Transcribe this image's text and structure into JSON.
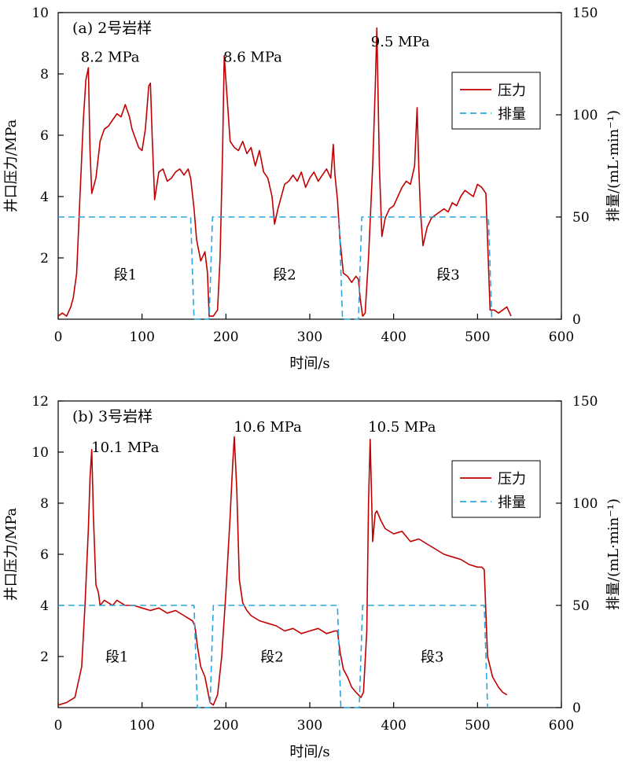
{
  "chart_data": [
    {
      "type": "line",
      "title": "(a) 2号岩样",
      "xlabel": "时间/s",
      "ylabel_left": "井口压力/MPa",
      "ylabel_right": "排量/(mL·min⁻¹)",
      "xlim": [
        0,
        600
      ],
      "ylim_left": [
        0,
        10
      ],
      "ylim_right": [
        0,
        150
      ],
      "xticks": [
        0,
        100,
        200,
        300,
        400,
        500,
        600
      ],
      "yticks_left": [
        2,
        4,
        6,
        8,
        10
      ],
      "yticks_right": [
        0,
        50,
        100,
        150
      ],
      "legend": {
        "position": "top-right",
        "entries": [
          "压力",
          "排量"
        ]
      },
      "grid": false,
      "annotations": [
        {
          "text": "8.2 MPa",
          "x": 62,
          "y": 8.4
        },
        {
          "text": "8.6 MPa",
          "x": 232,
          "y": 8.4
        },
        {
          "text": "9.5 MPa",
          "x": 408,
          "y": 8.9
        },
        {
          "text": "段1",
          "x": 80,
          "y": 1.3
        },
        {
          "text": "段2",
          "x": 270,
          "y": 1.3
        },
        {
          "text": "段3",
          "x": 465,
          "y": 1.3
        }
      ],
      "series": [
        {
          "name": "压力",
          "axis": "left",
          "color": "#c00000",
          "style": "solid",
          "x": [
            0,
            5,
            10,
            15,
            18,
            22,
            26,
            30,
            33,
            36,
            38,
            40,
            45,
            50,
            55,
            60,
            65,
            70,
            75,
            80,
            85,
            88,
            92,
            96,
            100,
            104,
            108,
            110,
            112,
            115,
            120,
            125,
            130,
            135,
            140,
            145,
            150,
            155,
            158,
            162,
            165,
            170,
            175,
            178,
            180,
            185,
            190,
            193,
            196,
            198,
            200,
            205,
            210,
            215,
            220,
            225,
            230,
            235,
            240,
            245,
            250,
            255,
            258,
            262,
            265,
            270,
            275,
            280,
            285,
            290,
            295,
            300,
            305,
            310,
            315,
            320,
            325,
            328,
            330,
            333,
            336,
            340,
            345,
            350,
            355,
            358,
            360,
            363,
            366,
            370,
            375,
            378,
            380,
            383,
            386,
            390,
            395,
            400,
            405,
            410,
            415,
            420,
            425,
            428,
            430,
            432,
            435,
            440,
            445,
            450,
            455,
            460,
            465,
            470,
            475,
            480,
            485,
            490,
            495,
            500,
            505,
            510,
            513,
            515,
            520,
            525,
            530,
            535,
            540
          ],
          "y": [
            0.1,
            0.2,
            0.1,
            0.4,
            0.7,
            1.5,
            4.0,
            6.5,
            7.8,
            8.2,
            5.5,
            4.1,
            4.6,
            5.8,
            6.2,
            6.3,
            6.5,
            6.7,
            6.6,
            7.0,
            6.6,
            6.2,
            5.9,
            5.6,
            5.5,
            6.2,
            7.6,
            7.7,
            6.0,
            3.9,
            4.8,
            4.9,
            4.5,
            4.6,
            4.8,
            4.9,
            4.7,
            4.9,
            4.6,
            3.6,
            2.6,
            1.9,
            2.2,
            1.5,
            0.1,
            0.1,
            0.3,
            2.0,
            5.5,
            8.6,
            7.8,
            5.8,
            5.6,
            5.5,
            5.8,
            5.4,
            5.6,
            5.0,
            5.5,
            4.8,
            4.6,
            4.0,
            3.1,
            3.6,
            3.9,
            4.4,
            4.5,
            4.7,
            4.5,
            4.8,
            4.3,
            4.6,
            4.8,
            4.5,
            4.7,
            4.9,
            4.6,
            5.7,
            4.7,
            3.9,
            2.6,
            1.5,
            1.4,
            1.2,
            1.4,
            1.3,
            0.7,
            0.1,
            0.2,
            2.0,
            5.0,
            7.5,
            9.5,
            5.0,
            2.7,
            3.3,
            3.6,
            3.7,
            4.0,
            4.3,
            4.5,
            4.4,
            5.0,
            6.9,
            4.9,
            3.5,
            2.4,
            3.0,
            3.3,
            3.4,
            3.5,
            3.6,
            3.5,
            3.8,
            3.7,
            4.0,
            4.2,
            4.1,
            4.0,
            4.4,
            4.3,
            4.1,
            1.8,
            0.3,
            0.3,
            0.2,
            0.3,
            0.4,
            0.1
          ]
        },
        {
          "name": "排量",
          "axis": "right",
          "color": "#2aa7de",
          "style": "dashed",
          "x": [
            0,
            158,
            162,
            180,
            184,
            335,
            339,
            358,
            362,
            513,
            517
          ],
          "y": [
            50,
            50,
            0,
            0,
            50,
            50,
            0,
            0,
            50,
            50,
            0
          ]
        }
      ]
    },
    {
      "type": "line",
      "title": "(b) 3号岩样",
      "xlabel": "时间/s",
      "ylabel_left": "井口压力/MPa",
      "ylabel_right": "排量/(mL·min⁻¹)",
      "xlim": [
        0,
        600
      ],
      "ylim_left": [
        0,
        12
      ],
      "ylim_right": [
        0,
        150
      ],
      "xticks": [
        0,
        100,
        200,
        300,
        400,
        500,
        600
      ],
      "yticks_left": [
        2,
        4,
        6,
        8,
        10,
        12
      ],
      "yticks_right": [
        0,
        50,
        100,
        150
      ],
      "legend": {
        "position": "top-right",
        "entries": [
          "压力",
          "排量"
        ]
      },
      "grid": false,
      "annotations": [
        {
          "text": "10.1 MPa",
          "x": 80,
          "y": 10.0
        },
        {
          "text": "10.6 MPa",
          "x": 250,
          "y": 10.8
        },
        {
          "text": "10.5 MPa",
          "x": 410,
          "y": 10.8
        },
        {
          "text": "段1",
          "x": 70,
          "y": 1.8
        },
        {
          "text": "段2",
          "x": 255,
          "y": 1.8
        },
        {
          "text": "段3",
          "x": 446,
          "y": 1.8
        }
      ],
      "series": [
        {
          "name": "压力",
          "axis": "left",
          "color": "#c00000",
          "style": "solid",
          "x": [
            0,
            10,
            20,
            28,
            32,
            36,
            38,
            40,
            42,
            45,
            48,
            50,
            55,
            60,
            65,
            70,
            75,
            80,
            90,
            100,
            110,
            120,
            130,
            140,
            150,
            155,
            160,
            163,
            166,
            170,
            175,
            178,
            181,
            185,
            190,
            195,
            200,
            205,
            208,
            210,
            213,
            216,
            220,
            225,
            230,
            240,
            250,
            260,
            270,
            280,
            290,
            300,
            310,
            320,
            330,
            333,
            336,
            340,
            345,
            350,
            355,
            358,
            361,
            364,
            368,
            370,
            372,
            375,
            378,
            380,
            385,
            390,
            400,
            410,
            420,
            430,
            440,
            450,
            460,
            470,
            480,
            490,
            500,
            505,
            508,
            512,
            518,
            525,
            530,
            535
          ],
          "y": [
            0.1,
            0.2,
            0.4,
            1.6,
            4.0,
            7.0,
            9.0,
            10.1,
            7.5,
            4.8,
            4.5,
            4.0,
            4.2,
            4.1,
            4.0,
            4.2,
            4.1,
            4.0,
            4.0,
            3.9,
            3.8,
            3.9,
            3.7,
            3.8,
            3.6,
            3.5,
            3.4,
            3.2,
            2.4,
            1.6,
            1.2,
            0.7,
            0.2,
            0.1,
            0.5,
            2.0,
            4.5,
            7.5,
            9.5,
            10.6,
            8.5,
            5.0,
            4.1,
            3.8,
            3.6,
            3.4,
            3.3,
            3.2,
            3.0,
            3.1,
            2.9,
            3.0,
            3.1,
            2.9,
            3.0,
            3.0,
            2.2,
            1.5,
            1.2,
            0.8,
            0.6,
            0.5,
            0.4,
            0.6,
            3.0,
            8.0,
            10.5,
            6.5,
            7.6,
            7.7,
            7.3,
            7.0,
            6.8,
            6.9,
            6.5,
            6.6,
            6.4,
            6.2,
            6.0,
            5.9,
            5.8,
            5.6,
            5.5,
            5.5,
            5.4,
            2.0,
            1.2,
            0.8,
            0.6,
            0.5
          ]
        },
        {
          "name": "排量",
          "axis": "right",
          "color": "#2aa7de",
          "style": "dashed",
          "x": [
            0,
            162,
            166,
            181,
            185,
            333,
            337,
            359,
            363,
            508,
            512
          ],
          "y": [
            50,
            50,
            0,
            0,
            50,
            50,
            0,
            0,
            50,
            50,
            0
          ]
        }
      ]
    }
  ]
}
